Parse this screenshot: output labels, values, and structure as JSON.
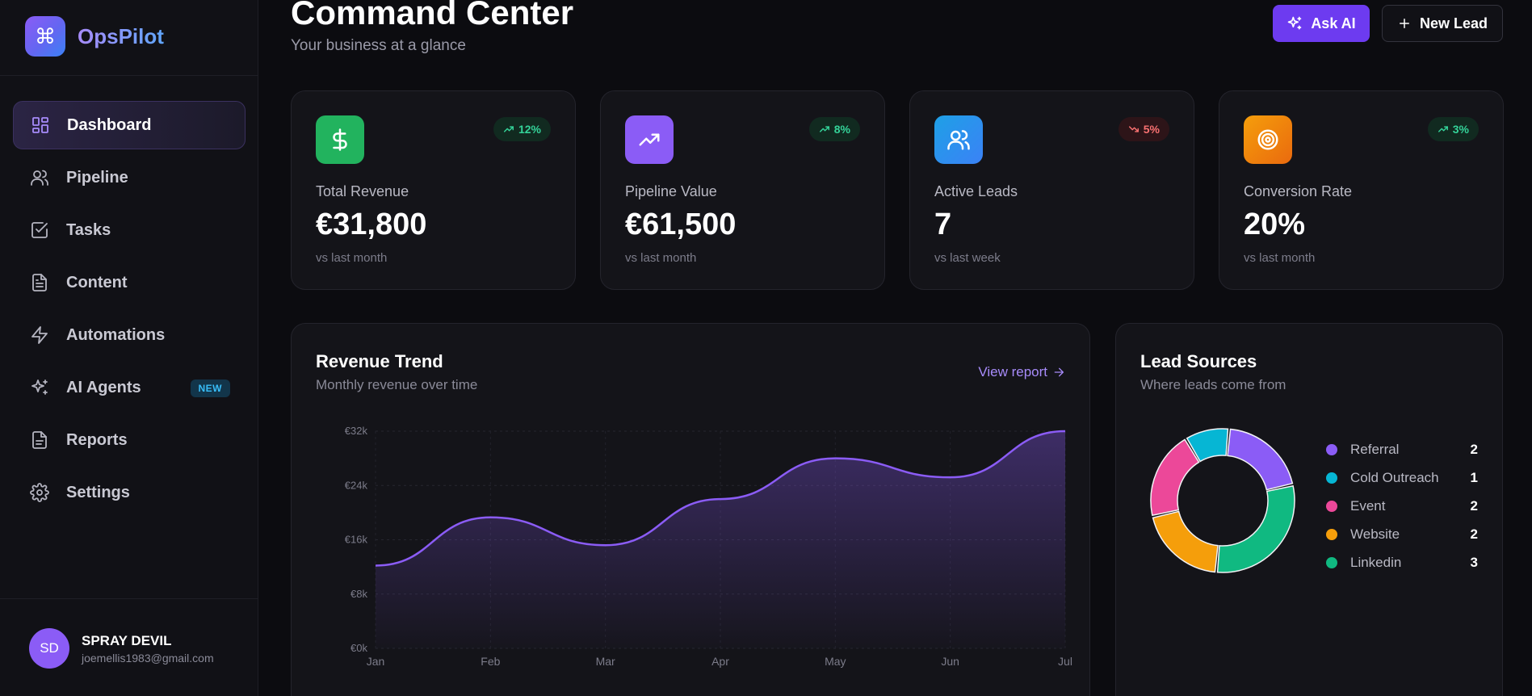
{
  "brand": {
    "logo_glyph": "⌘",
    "name": "OpsPilot"
  },
  "sidebar": {
    "items": [
      {
        "label": "Dashboard",
        "icon": "dashboard-icon",
        "active": true
      },
      {
        "label": "Pipeline",
        "icon": "users-icon"
      },
      {
        "label": "Tasks",
        "icon": "checkbox-icon"
      },
      {
        "label": "Content",
        "icon": "document-icon"
      },
      {
        "label": "Automations",
        "icon": "lightning-icon"
      },
      {
        "label": "AI Agents",
        "icon": "sparkles-icon",
        "badge": "NEW"
      },
      {
        "label": "Reports",
        "icon": "report-icon"
      },
      {
        "label": "Settings",
        "icon": "gear-icon"
      }
    ],
    "user": {
      "initials": "SD",
      "name": "SPRAY DEVIL",
      "email": "joemellis1983@gmail.com"
    }
  },
  "header": {
    "title": "Command Center",
    "subtitle": "Your business at a glance",
    "ask_ai_label": "Ask AI",
    "new_lead_label": "New Lead"
  },
  "stats": [
    {
      "label": "Total Revenue",
      "value": "€31,800",
      "change": "12%",
      "trend": "up",
      "sub": "vs last month",
      "icon": "dollar-icon",
      "color": "#22b35e"
    },
    {
      "label": "Pipeline Value",
      "value": "€61,500",
      "change": "8%",
      "trend": "up",
      "sub": "vs last month",
      "icon": "trending-up-icon",
      "color": "#8b5cf6"
    },
    {
      "label": "Active Leads",
      "value": "7",
      "change": "5%",
      "trend": "down",
      "sub": "vs last week",
      "icon": "users-icon",
      "color": "#2b8fe0"
    },
    {
      "label": "Conversion Rate",
      "value": "20%",
      "change": "3%",
      "trend": "up",
      "sub": "vs last month",
      "icon": "target-icon",
      "color": "#f08a14"
    }
  ],
  "revenue": {
    "title": "Revenue Trend",
    "subtitle": "Monthly revenue over time",
    "link_label": "View report"
  },
  "lead_sources": {
    "title": "Lead Sources",
    "subtitle": "Where leads come from",
    "items": [
      {
        "name": "Referral",
        "value": "2",
        "color": "#8b5cf6"
      },
      {
        "name": "Cold Outreach",
        "value": "1",
        "color": "#06b6d4"
      },
      {
        "name": "Event",
        "value": "2",
        "color": "#ec4899"
      },
      {
        "name": "Website",
        "value": "2",
        "color": "#f59e0b"
      },
      {
        "name": "Linkedin",
        "value": "3",
        "color": "#10b981"
      }
    ]
  },
  "chart_data": [
    {
      "type": "area",
      "title": "Revenue Trend",
      "subtitle": "Monthly revenue over time",
      "categories": [
        "Jan",
        "Feb",
        "Mar",
        "Apr",
        "May",
        "Jun",
        "Jul"
      ],
      "series": [
        {
          "values": [
            12200,
            19300,
            15200,
            22000,
            28000,
            25200,
            32000
          ]
        }
      ],
      "y_ticks": [
        "€0k",
        "€8k",
        "€16k",
        "€24k",
        "€32k"
      ],
      "ylim": [
        0,
        32000
      ],
      "grid": true,
      "color": "#8b5cf6"
    },
    {
      "type": "pie",
      "title": "Lead Sources",
      "subtitle": "Where leads come from",
      "categories": [
        "Referral",
        "Cold Outreach",
        "Event",
        "Website",
        "Linkedin"
      ],
      "values": [
        2,
        1,
        2,
        2,
        3
      ],
      "colors": [
        "#8b5cf6",
        "#06b6d4",
        "#ec4899",
        "#f59e0b",
        "#10b981"
      ],
      "legend": "right"
    }
  ]
}
